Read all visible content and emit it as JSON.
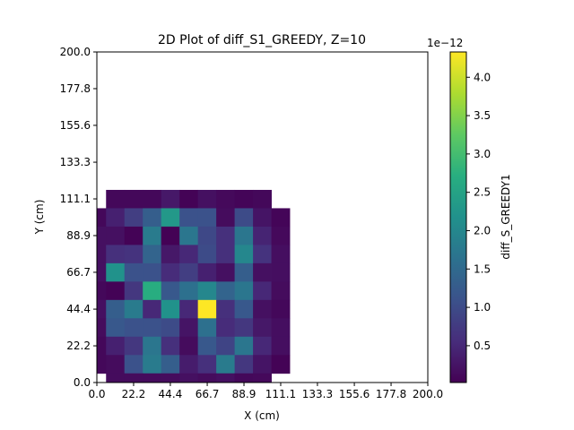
{
  "chart_data": {
    "type": "heatmap",
    "title": "2D Plot of diff_S1_GREEDY, Z=10",
    "xlabel": "X (cm)",
    "ylabel": "Y (cm)",
    "xlim": [
      0,
      200
    ],
    "ylim": [
      0,
      200
    ],
    "xticks": [
      "0.0",
      "22.2",
      "44.4",
      "66.7",
      "88.9",
      "111.1",
      "133.3",
      "155.6",
      "177.8",
      "200.0"
    ],
    "yticks": [
      "0.0",
      "22.2",
      "44.4",
      "66.7",
      "88.9",
      "111.1",
      "133.3",
      "155.6",
      "177.8",
      "200.0"
    ],
    "colorbar": {
      "label": "diff_S_GREEDY1",
      "offset_text": "1e−12",
      "ticks": [
        "0.5",
        "1.0",
        "1.5",
        "2.0",
        "2.5",
        "3.0",
        "3.5",
        "4.0"
      ],
      "tick_values": [
        0.5,
        1.0,
        1.5,
        2.0,
        2.5,
        3.0,
        3.5,
        4.0
      ],
      "range": [
        0.02,
        4.33
      ],
      "colormap": "viridis"
    },
    "grid": false,
    "cell_size": 11.1,
    "rows_top_to_bottom": [
      [
        null,
        0.1,
        0.1,
        0.1,
        0.3,
        0.05,
        0.2,
        0.12,
        0.07,
        0.1,
        null
      ],
      [
        0.1,
        0.4,
        0.8,
        1.3,
        2.3,
        1.1,
        1.1,
        0.15,
        1.0,
        0.25,
        0.07
      ],
      [
        0.2,
        0.2,
        0.05,
        1.8,
        0.03,
        1.7,
        0.95,
        0.6,
        1.7,
        0.45,
        0.12
      ],
      [
        0.2,
        0.6,
        0.65,
        1.4,
        0.3,
        0.5,
        1.0,
        0.6,
        2.0,
        0.65,
        0.18
      ],
      [
        0.2,
        2.2,
        1.1,
        1.1,
        0.55,
        0.8,
        0.4,
        0.2,
        1.3,
        0.2,
        0.18
      ],
      [
        0.1,
        0.05,
        0.7,
        2.7,
        1.2,
        1.6,
        2.0,
        1.4,
        1.7,
        0.5,
        0.15
      ],
      [
        0.2,
        1.3,
        1.8,
        0.5,
        2.2,
        0.5,
        4.33,
        0.6,
        1.2,
        0.2,
        0.1
      ],
      [
        0.15,
        1.2,
        1.1,
        1.1,
        1.0,
        0.25,
        1.6,
        0.55,
        0.7,
        0.3,
        0.18
      ],
      [
        0.1,
        0.4,
        0.7,
        1.7,
        0.6,
        0.15,
        1.2,
        0.9,
        1.7,
        0.5,
        0.18
      ],
      [
        0.1,
        0.15,
        1.1,
        1.8,
        1.3,
        0.35,
        0.6,
        1.8,
        0.7,
        0.25,
        0.05
      ],
      [
        null,
        0.15,
        0.15,
        0.15,
        0.15,
        0.2,
        0.15,
        0.2,
        0.1,
        0.12,
        null
      ]
    ]
  }
}
